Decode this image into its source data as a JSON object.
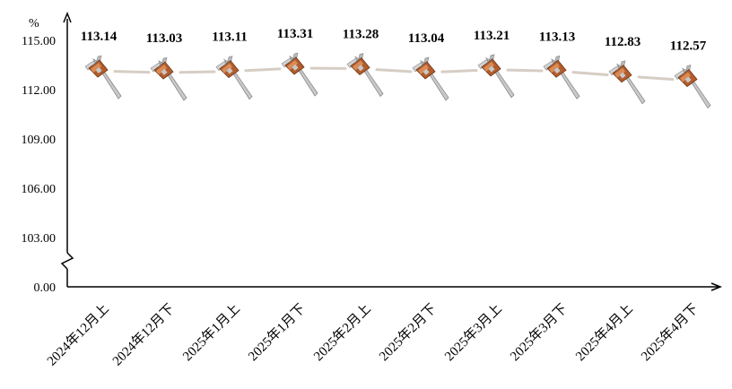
{
  "chart_data": {
    "type": "line",
    "unit": "%",
    "categories": [
      "2024年12月上",
      "2024年12月下",
      "2025年1月上",
      "2025年1月下",
      "2025年2月上",
      "2025年2月下",
      "2025年3月上",
      "2025年3月下",
      "2025年4月上",
      "2025年4月下"
    ],
    "series": [
      {
        "values": [
          113.14,
          113.03,
          113.11,
          113.31,
          113.28,
          113.04,
          113.21,
          113.13,
          112.83,
          112.57
        ]
      }
    ],
    "y_ticks": [
      "0.00",
      "103.00",
      "106.00",
      "109.00",
      "112.00",
      "115.00"
    ],
    "ylim": [
      100,
      116
    ],
    "axis_break": true,
    "grid": false,
    "colors": {
      "line": "#d6cdc4",
      "axis": "#000000"
    },
    "marker_icon": "caliper-icon"
  }
}
